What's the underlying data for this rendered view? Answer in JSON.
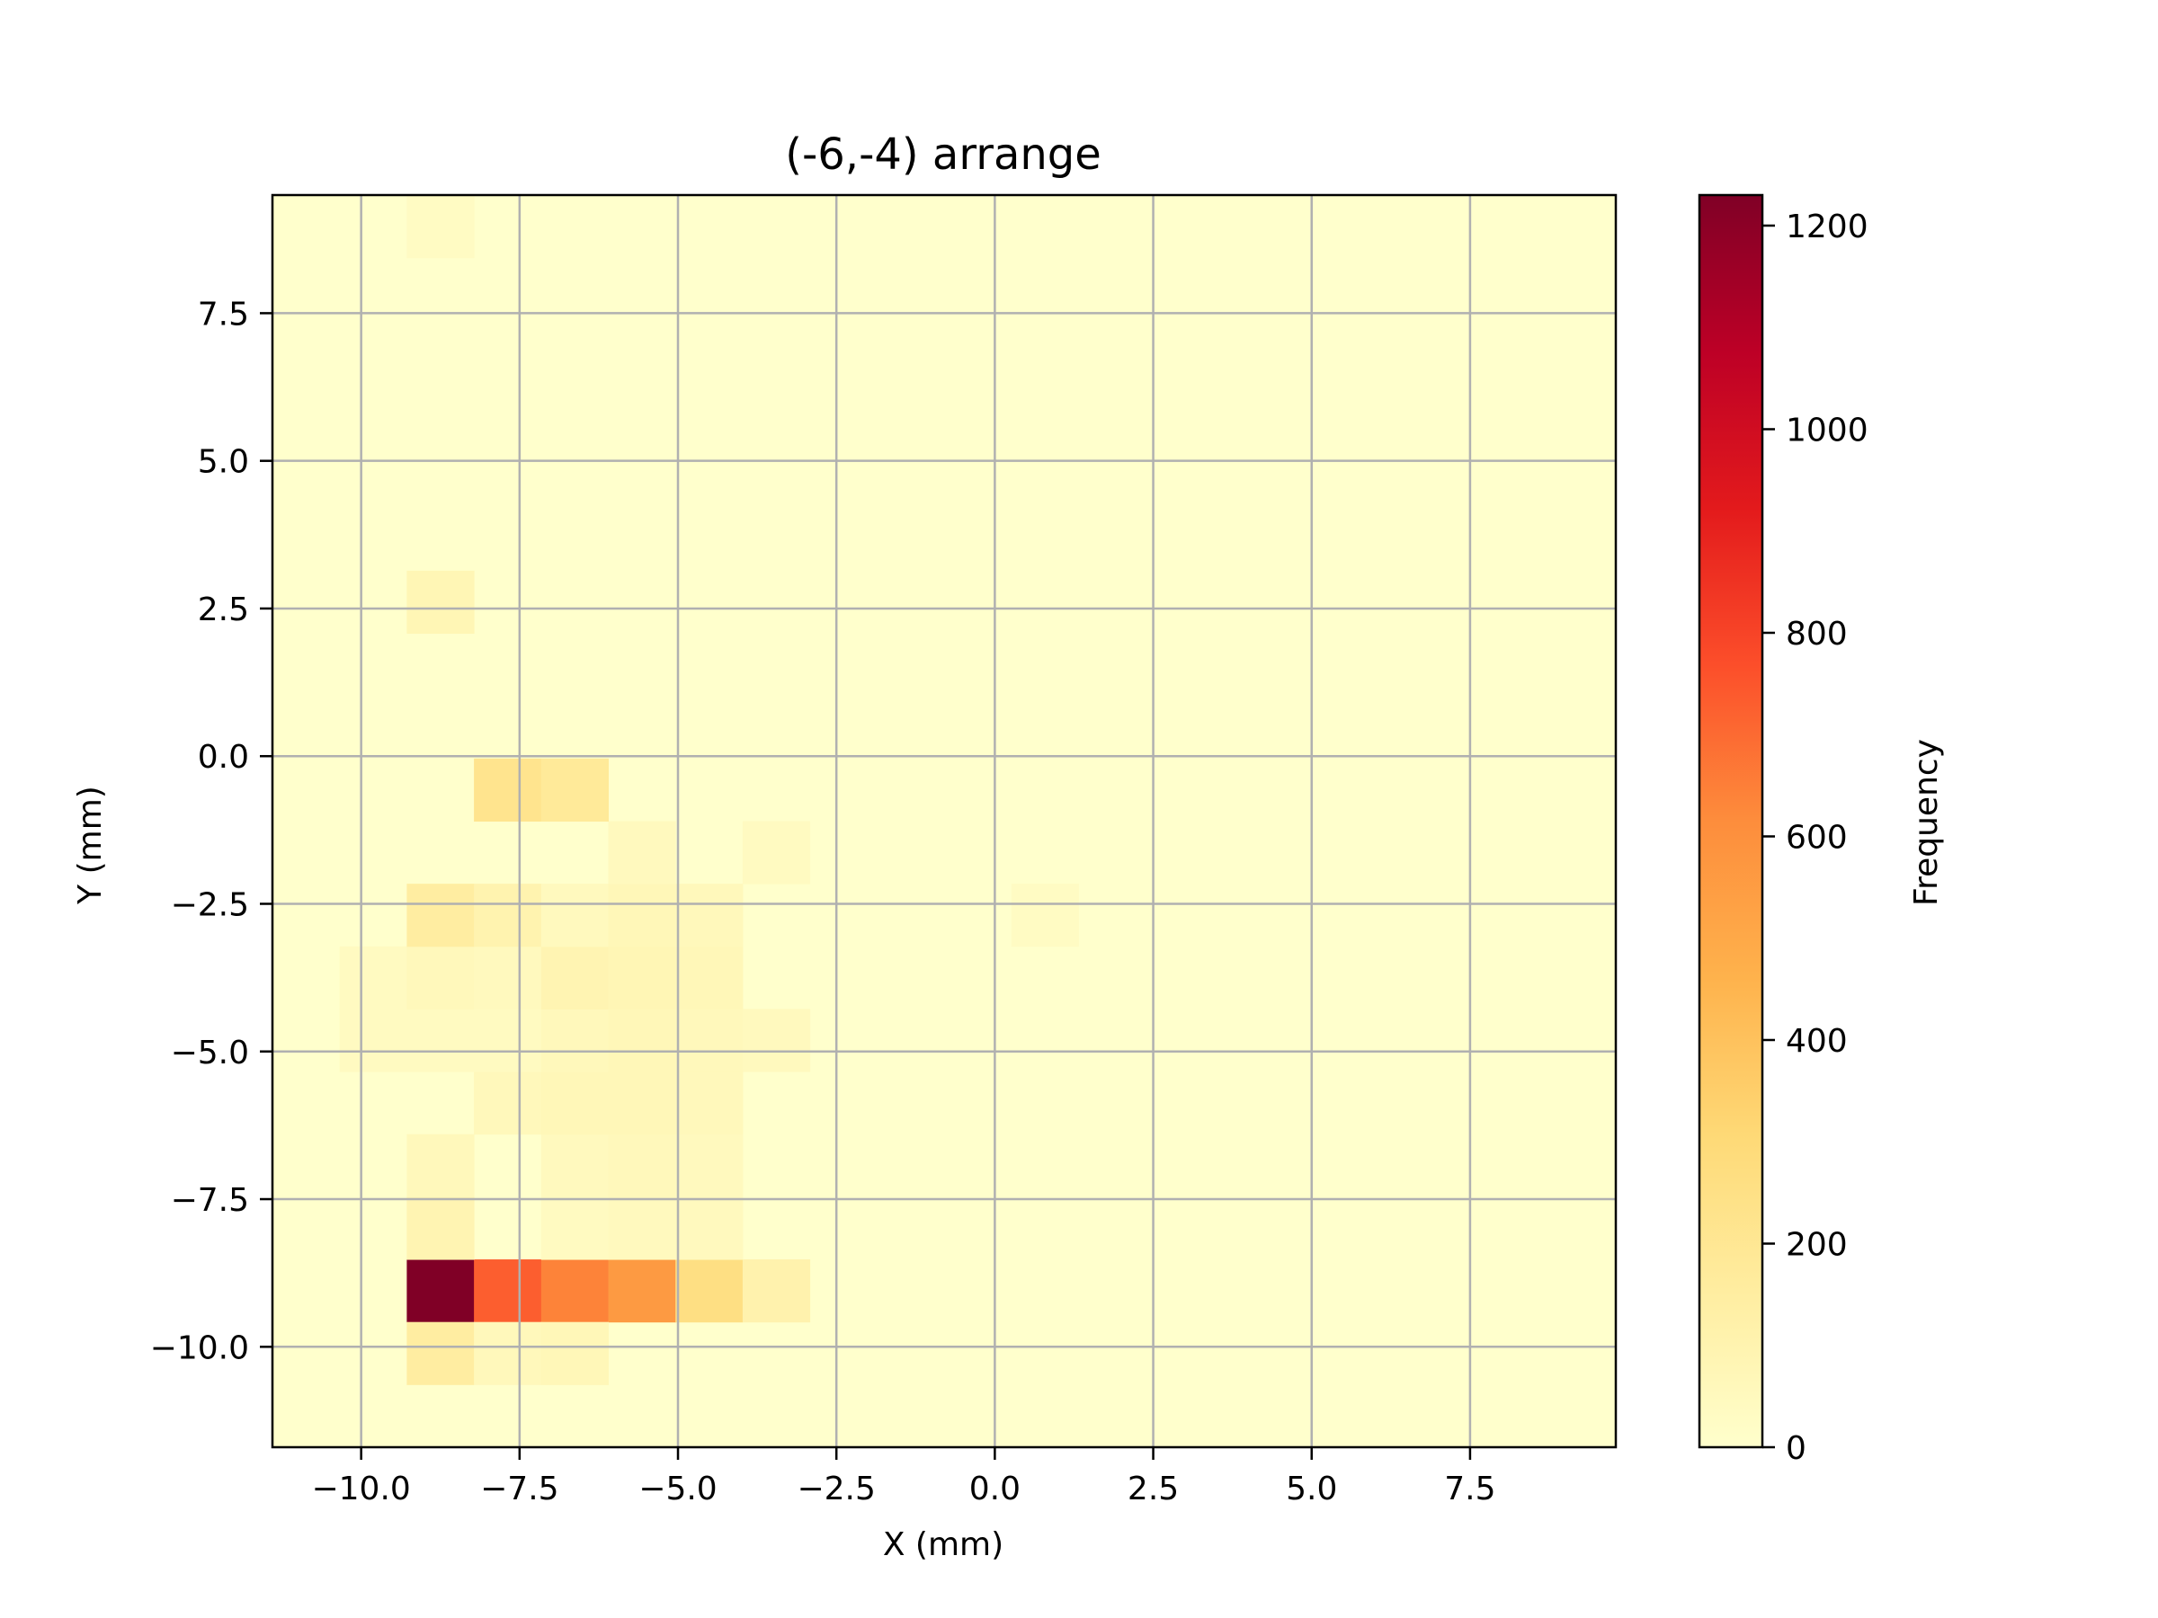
{
  "chart_data": {
    "type": "heatmap",
    "title": "(-6,-4) arrange",
    "xlabel": "X (mm)",
    "ylabel": "Y (mm)",
    "colorbar_label": "Frequency",
    "colormap": "YlOrRd",
    "xlim": [
      -11.4,
      9.8
    ],
    "ylim": [
      -11.7,
      9.5
    ],
    "x_ticks": [
      -10.0,
      -7.5,
      -5.0,
      -2.5,
      0.0,
      2.5,
      5.0,
      7.5
    ],
    "x_tick_labels": [
      "−10.0",
      "−7.5",
      "−5.0",
      "−2.5",
      "0.0",
      "2.5",
      "5.0",
      "7.5"
    ],
    "y_ticks": [
      -10.0,
      -7.5,
      -5.0,
      -2.5,
      0.0,
      2.5,
      5.0,
      7.5
    ],
    "y_tick_labels": [
      "−10.0",
      "−7.5",
      "−5.0",
      "−2.5",
      "0.0",
      "2.5",
      "5.0",
      "7.5"
    ],
    "colorbar_range": [
      0,
      1230
    ],
    "colorbar_ticks": [
      0,
      200,
      400,
      600,
      800,
      1000,
      1200
    ],
    "colorbar_tick_labels": [
      "0",
      "200",
      "400",
      "600",
      "800",
      "1000",
      "1200"
    ],
    "grid": true,
    "x_bin_edges": [
      -11.4,
      -10.34,
      -9.28,
      -8.22,
      -7.16,
      -6.1,
      -5.04,
      -3.98,
      -2.92,
      -1.86,
      -0.8,
      0.26,
      1.32,
      2.38,
      3.44,
      4.5,
      5.56,
      6.62,
      7.68,
      8.74,
      9.8
    ],
    "y_bin_edges": [
      -11.7,
      -10.64,
      -9.58,
      -8.52,
      -7.46,
      -6.4,
      -5.34,
      -4.28,
      -3.22,
      -2.16,
      -1.1,
      -0.04,
      1.02,
      2.08,
      3.14,
      4.2,
      5.26,
      6.32,
      7.38,
      8.44,
      9.5
    ],
    "cells": [
      {
        "x": -8.75,
        "y": -9.05,
        "value": 1230
      },
      {
        "x": -7.69,
        "y": -9.05,
        "value": 730
      },
      {
        "x": -6.63,
        "y": -9.05,
        "value": 640
      },
      {
        "x": -5.57,
        "y": -9.05,
        "value": 560
      },
      {
        "x": -4.51,
        "y": -9.05,
        "value": 260
      },
      {
        "x": -3.45,
        "y": -9.05,
        "value": 110
      },
      {
        "x": -8.75,
        "y": -10.11,
        "value": 150
      },
      {
        "x": -7.69,
        "y": -10.11,
        "value": 60
      },
      {
        "x": -6.63,
        "y": -10.11,
        "value": 70
      },
      {
        "x": -8.75,
        "y": -7.99,
        "value": 90
      },
      {
        "x": -6.63,
        "y": -7.99,
        "value": 40
      },
      {
        "x": -5.57,
        "y": -7.99,
        "value": 50
      },
      {
        "x": -4.51,
        "y": -7.99,
        "value": 50
      },
      {
        "x": -8.75,
        "y": -6.93,
        "value": 60
      },
      {
        "x": -6.63,
        "y": -6.93,
        "value": 50
      },
      {
        "x": -5.57,
        "y": -6.93,
        "value": 60
      },
      {
        "x": -4.51,
        "y": -6.93,
        "value": 50
      },
      {
        "x": -7.69,
        "y": -5.87,
        "value": 60
      },
      {
        "x": -6.63,
        "y": -5.87,
        "value": 70
      },
      {
        "x": -5.57,
        "y": -5.87,
        "value": 70
      },
      {
        "x": -4.51,
        "y": -5.87,
        "value": 60
      },
      {
        "x": -9.81,
        "y": -4.81,
        "value": 40
      },
      {
        "x": -8.75,
        "y": -4.81,
        "value": 40
      },
      {
        "x": -7.69,
        "y": -4.81,
        "value": 40
      },
      {
        "x": -6.63,
        "y": -4.81,
        "value": 60
      },
      {
        "x": -5.57,
        "y": -4.81,
        "value": 70
      },
      {
        "x": -4.51,
        "y": -4.81,
        "value": 60
      },
      {
        "x": -3.45,
        "y": -4.81,
        "value": 50
      },
      {
        "x": -9.81,
        "y": -3.75,
        "value": 40
      },
      {
        "x": -8.75,
        "y": -3.75,
        "value": 60
      },
      {
        "x": -7.69,
        "y": -3.75,
        "value": 50
      },
      {
        "x": -6.63,
        "y": -3.75,
        "value": 90
      },
      {
        "x": -5.57,
        "y": -3.75,
        "value": 80
      },
      {
        "x": -4.51,
        "y": -3.75,
        "value": 70
      },
      {
        "x": -8.75,
        "y": -2.69,
        "value": 150
      },
      {
        "x": -7.69,
        "y": -2.69,
        "value": 100
      },
      {
        "x": -6.63,
        "y": -2.69,
        "value": 50
      },
      {
        "x": -5.57,
        "y": -2.69,
        "value": 70
      },
      {
        "x": -4.51,
        "y": -2.69,
        "value": 60
      },
      {
        "x": 0.79,
        "y": -2.69,
        "value": 30
      },
      {
        "x": -5.57,
        "y": -1.63,
        "value": 50
      },
      {
        "x": -3.45,
        "y": -1.63,
        "value": 40
      },
      {
        "x": -7.69,
        "y": -0.57,
        "value": 220
      },
      {
        "x": -6.63,
        "y": -0.57,
        "value": 180
      },
      {
        "x": -8.75,
        "y": 2.61,
        "value": 80
      },
      {
        "x": -8.75,
        "y": 8.97,
        "value": 30
      }
    ]
  }
}
